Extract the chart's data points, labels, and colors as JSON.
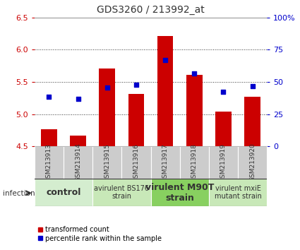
{
  "title": "GDS3260 / 213992_at",
  "samples": [
    "GSM213913",
    "GSM213914",
    "GSM213915",
    "GSM213916",
    "GSM213917",
    "GSM213918",
    "GSM213919",
    "GSM213920"
  ],
  "bar_values": [
    4.76,
    4.67,
    5.71,
    5.31,
    6.21,
    5.61,
    5.04,
    5.27
  ],
  "scatter_values": [
    5.27,
    5.24,
    5.41,
    5.46,
    5.84,
    5.63,
    5.35,
    5.43
  ],
  "ylim": [
    4.5,
    6.5
  ],
  "yticks": [
    4.5,
    5.0,
    5.5,
    6.0,
    6.5
  ],
  "y2lim": [
    0,
    100
  ],
  "y2ticks": [
    0,
    25,
    50,
    75,
    100
  ],
  "y2ticklabels": [
    "0",
    "25",
    "50",
    "75",
    "100%"
  ],
  "bar_color": "#cc0000",
  "scatter_color": "#0000cc",
  "bar_bottom": 4.5,
  "groups": [
    {
      "label": "control",
      "start": 0,
      "end": 2,
      "color": "#d4edcf",
      "fontsize": 9,
      "bold": true
    },
    {
      "label": "avirulent BS176\nstrain",
      "start": 2,
      "end": 4,
      "color": "#c8e8b8",
      "fontsize": 7,
      "bold": false
    },
    {
      "label": "virulent M90T\nstrain",
      "start": 4,
      "end": 6,
      "color": "#88d060",
      "fontsize": 9,
      "bold": true
    },
    {
      "label": "virulent mxiE\nmutant strain",
      "start": 6,
      "end": 8,
      "color": "#c8e8b8",
      "fontsize": 7,
      "bold": false
    }
  ],
  "ylabel_left_color": "#cc0000",
  "ylabel_right_color": "#0000cc",
  "background_color": "#ffffff",
  "sample_box_color": "#cccccc",
  "infection_label": "infection",
  "legend_items": [
    {
      "label": "transformed count",
      "color": "#cc0000"
    },
    {
      "label": "percentile rank within the sample",
      "color": "#0000cc"
    }
  ]
}
